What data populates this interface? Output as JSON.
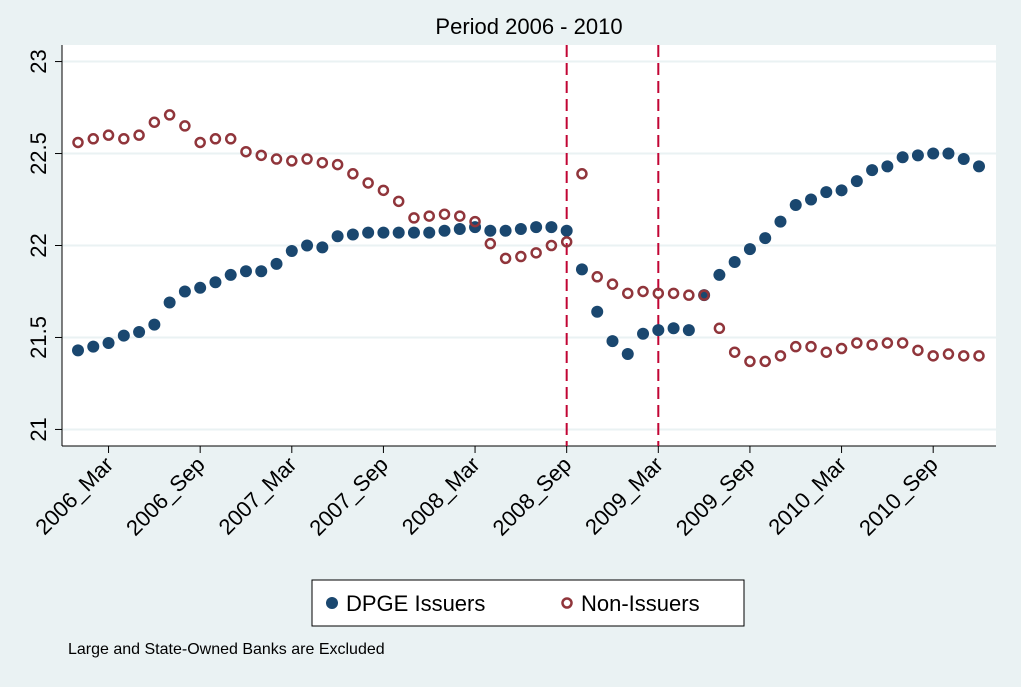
{
  "chart_data": {
    "type": "scatter",
    "title": "Period 2006 - 2010",
    "note": "Large and State-Owned Banks are Excluded",
    "categories": [
      null,
      null,
      "2006_Mar",
      null,
      null,
      null,
      null,
      null,
      "2006_Sep",
      null,
      null,
      null,
      null,
      null,
      "2007_Mar",
      null,
      null,
      null,
      null,
      null,
      "2007_Sep",
      null,
      null,
      null,
      null,
      null,
      "2008_Mar",
      null,
      null,
      null,
      null,
      null,
      "2008_Sep",
      null,
      null,
      null,
      null,
      null,
      "2009_Mar",
      null,
      null,
      null,
      null,
      null,
      "2009_Sep",
      null,
      null,
      null,
      null,
      null,
      "2010_Mar",
      null,
      null,
      null,
      null,
      null,
      "2010_Sep",
      null,
      null,
      null
    ],
    "series": [
      {
        "name": "DPGE Issuers",
        "color": "#1a476f",
        "marker": "filled",
        "values": [
          21.43,
          21.45,
          21.47,
          21.51,
          21.53,
          21.57,
          21.69,
          21.75,
          21.77,
          21.8,
          21.84,
          21.86,
          21.86,
          21.9,
          21.97,
          22.0,
          21.99,
          22.05,
          22.06,
          22.07,
          22.07,
          22.07,
          22.07,
          22.07,
          22.08,
          22.09,
          22.1,
          22.08,
          22.08,
          22.09,
          22.1,
          22.1,
          22.08,
          21.87,
          21.64,
          21.48,
          21.41,
          21.52,
          21.54,
          21.55,
          21.54,
          21.73,
          21.84,
          21.91,
          21.98,
          22.04,
          22.13,
          22.22,
          22.25,
          22.29,
          22.3,
          22.35,
          22.41,
          22.43,
          22.48,
          22.49,
          22.5,
          22.5,
          22.47,
          22.43
        ]
      },
      {
        "name": "Non-Issuers",
        "color": "#90353b",
        "marker": "hollow",
        "values": [
          22.56,
          22.58,
          22.6,
          22.58,
          22.6,
          22.67,
          22.71,
          22.65,
          22.56,
          22.58,
          22.58,
          22.51,
          22.49,
          22.47,
          22.46,
          22.47,
          22.45,
          22.44,
          22.39,
          22.34,
          22.3,
          22.24,
          22.15,
          22.16,
          22.17,
          22.16,
          22.13,
          22.01,
          21.93,
          21.94,
          21.96,
          22.0,
          22.02,
          22.39,
          21.83,
          21.79,
          21.74,
          21.75,
          21.74,
          21.74,
          21.73,
          21.73,
          21.55,
          21.42,
          21.37,
          21.37,
          21.4,
          21.45,
          21.45,
          21.42,
          21.44,
          21.47,
          21.46,
          21.47,
          21.47,
          21.43,
          21.4,
          21.41,
          21.4,
          21.4
        ]
      }
    ],
    "ylim": [
      20.91,
      23.09
    ],
    "yticks": [
      21,
      21.5,
      22,
      22.5,
      23
    ],
    "grid": true,
    "reference_lines": [
      "2008_Sep",
      "2009_Mar"
    ],
    "reference_color": "#c10534",
    "legend": "bottom"
  }
}
